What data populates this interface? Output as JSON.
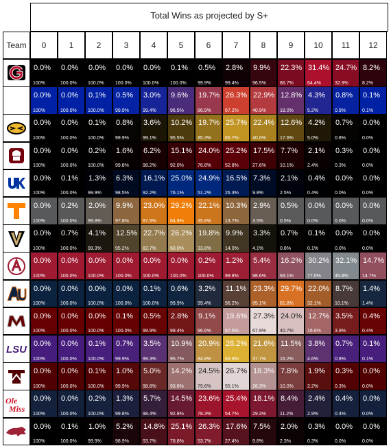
{
  "chart_data": {
    "type": "heatmap",
    "title": "Total Wins as projected by S+",
    "row_header": "Team",
    "columns": [
      "0",
      "1",
      "2",
      "3",
      "4",
      "5",
      "6",
      "7",
      "8",
      "9",
      "10",
      "11",
      "12"
    ],
    "rows": [
      {
        "logo": "georgia-g-logo",
        "bg": "#000000",
        "fill": "#b0102e",
        "text": "#ffffff",
        "values": [
          "0.0%",
          "0.0%",
          "0.0%",
          "0.0%",
          "0.0%",
          "0.1%",
          "0.5%",
          "2.8%",
          "9.9%",
          "22.3%",
          "31.4%",
          "24.7%",
          "8.2%"
        ],
        "cumulative": [
          "100%",
          "100.0%",
          "100.0%",
          "100.0%",
          "100.0%",
          "100.0%",
          "99.9%",
          "99.4%",
          "96.5%",
          "86.7%",
          "64.4%",
          "32.9%",
          "8.2%"
        ]
      },
      {
        "logo": "florida-gator-logo",
        "bg": "#0021a5",
        "fill": "#fa4616",
        "text": "#ffffff",
        "values": [
          "0.0%",
          "0.0%",
          "0.1%",
          "0.5%",
          "3.0%",
          "9.6%",
          "19.7%",
          "26.3%",
          "22.9%",
          "12.8%",
          "4.3%",
          "0.8%",
          "0.1%"
        ],
        "cumulative": [
          "100%",
          "100.0%",
          "100.0%",
          "99.9%",
          "99.4%",
          "96.5%",
          "86.9%",
          "67.2%",
          "40.9%",
          "18.0%",
          "5.2%",
          "0.9%",
          "0.1%"
        ]
      },
      {
        "logo": "missouri-tiger-logo",
        "bg": "#000000",
        "fill": "#f1b82d",
        "text": "#ffffff",
        "values": [
          "0.0%",
          "0.0%",
          "0.1%",
          "0.8%",
          "3.6%",
          "10.2%",
          "19.7%",
          "25.7%",
          "22.4%",
          "12.6%",
          "4.2%",
          "0.7%",
          "0.0%"
        ],
        "cumulative": [
          "100%",
          "100.0%",
          "100.0%",
          "99.9%",
          "99.1%",
          "95.5%",
          "85.3%",
          "65.7%",
          "40.0%",
          "17.6%",
          "5.0%",
          "0.8%",
          "0.0%"
        ]
      },
      {
        "logo": "south-carolina-gamecock-logo",
        "bg": "#000000",
        "fill": "#73000a",
        "text": "#ffffff",
        "values": [
          "0.0%",
          "0.0%",
          "0.2%",
          "1.6%",
          "6.2%",
          "15.1%",
          "24.0%",
          "25.2%",
          "17.5%",
          "7.7%",
          "2.1%",
          "0.3%",
          "0.0%"
        ],
        "cumulative": [
          "100%",
          "100.0%",
          "100.0%",
          "99.8%",
          "98.2%",
          "92.0%",
          "76.8%",
          "52.8%",
          "27.6%",
          "10.1%",
          "2.4%",
          "0.3%",
          "0.0%"
        ]
      },
      {
        "logo": "kentucky-uk-logo",
        "bg": "#000000",
        "fill": "#0033a0",
        "text": "#ffffff",
        "values": [
          "0.0%",
          "0.1%",
          "1.3%",
          "6.3%",
          "16.1%",
          "25.0%",
          "24.9%",
          "16.5%",
          "7.3%",
          "2.1%",
          "0.4%",
          "0.0%",
          "0.0%"
        ],
        "cumulative": [
          "100%",
          "100.0%",
          "99.9%",
          "98.5%",
          "92.2%",
          "76.1%",
          "51.2%",
          "26.3%",
          "9.8%",
          "2.5%",
          "0.4%",
          "0.0%",
          "0.0%"
        ]
      },
      {
        "logo": "tennessee-t-logo",
        "bg": "#58595b",
        "fill": "#ff8200",
        "text": "#ffffff",
        "values": [
          "0.0%",
          "0.2%",
          "2.0%",
          "9.9%",
          "23.0%",
          "29.2%",
          "22.1%",
          "10.3%",
          "2.9%",
          "0.5%",
          "0.0%",
          "0.0%",
          "0.0%"
        ],
        "cumulative": [
          "100%",
          "100.0%",
          "99.8%",
          "97.8%",
          "87.9%",
          "64.9%",
          "35.8%",
          "13.7%",
          "3.5%",
          "0.5%",
          "0.0%",
          "0.0%",
          "0.0%"
        ]
      },
      {
        "logo": "vanderbilt-v-logo",
        "bg": "#000000",
        "fill": "#cfae70",
        "text": "#ffffff",
        "values": [
          "0.0%",
          "0.7%",
          "4.1%",
          "12.5%",
          "22.7%",
          "26.2%",
          "19.8%",
          "9.9%",
          "3.3%",
          "0.7%",
          "0.1%",
          "0.0%",
          "0.0%"
        ],
        "cumulative": [
          "100%",
          "100.0%",
          "99.3%",
          "95.2%",
          "82.7%",
          "60.0%",
          "33.8%",
          "14.0%",
          "4.1%",
          "0.8%",
          "0.1%",
          "0.0%",
          "0.0%"
        ]
      },
      {
        "logo": "alabama-a-logo",
        "bg": "#9e1b32",
        "fill": "#828a8f",
        "text": "#ffffff",
        "values": [
          "0.0%",
          "0.0%",
          "0.0%",
          "0.0%",
          "0.0%",
          "0.0%",
          "0.2%",
          "1.2%",
          "5.4%",
          "16.2%",
          "30.2%",
          "32.1%",
          "14.7%"
        ],
        "cumulative": [
          "100%",
          "100.0%",
          "100.0%",
          "100.0%",
          "100.0%",
          "100.0%",
          "100.0%",
          "99.8%",
          "98.6%",
          "93.1%",
          "77.0%",
          "46.8%",
          "14.7%"
        ]
      },
      {
        "logo": "auburn-au-logo",
        "bg": "#0c2340",
        "fill": "#e87722",
        "text": "#ffffff",
        "values": [
          "0.0%",
          "0.0%",
          "0.0%",
          "0.0%",
          "0.1%",
          "0.6%",
          "3.2%",
          "11.1%",
          "23.3%",
          "29.7%",
          "22.0%",
          "8.7%",
          "1.4%"
        ],
        "cumulative": [
          "100%",
          "100.0%",
          "100.0%",
          "100.0%",
          "100.0%",
          "99.9%",
          "99.4%",
          "96.2%",
          "85.1%",
          "61.8%",
          "32.1%",
          "10.1%",
          "1.4%"
        ]
      },
      {
        "logo": "mississippi-state-m-logo",
        "bg": "#660000",
        "fill": "#ffffff",
        "text": "#ffffff",
        "values": [
          "0.0%",
          "0.0%",
          "0.0%",
          "0.1%",
          "0.5%",
          "2.8%",
          "9.1%",
          "19.6%",
          "27.3%",
          "24.0%",
          "12.7%",
          "3.5%",
          "0.4%"
        ],
        "cumulative": [
          "100%",
          "100.0%",
          "100.0%",
          "100.0%",
          "99.9%",
          "99.4%",
          "96.6%",
          "87.5%",
          "67.9%",
          "40.7%",
          "16.6%",
          "3.9%",
          "0.4%"
        ]
      },
      {
        "logo": "lsu-logo",
        "bg": "#461d7c",
        "fill": "#fdd023",
        "text": "#ffffff",
        "values": [
          "0.0%",
          "0.0%",
          "0.1%",
          "0.7%",
          "3.5%",
          "10.9%",
          "20.9%",
          "26.2%",
          "21.6%",
          "11.5%",
          "3.8%",
          "0.7%",
          "0.1%"
        ],
        "cumulative": [
          "100%",
          "100.0%",
          "100.0%",
          "99.9%",
          "99.3%",
          "95.7%",
          "84.8%",
          "63.9%",
          "37.7%",
          "16.2%",
          "4.6%",
          "0.8%",
          "0.1%"
        ]
      },
      {
        "logo": "texas-am-atm-logo",
        "bg": "#500000",
        "fill": "#ffffff",
        "text": "#ffffff",
        "values": [
          "0.0%",
          "0.0%",
          "0.1%",
          "1.0%",
          "5.0%",
          "14.2%",
          "24.5%",
          "26.7%",
          "18.3%",
          "7.8%",
          "1.9%",
          "0.3%",
          "0.0%"
        ],
        "cumulative": [
          "100%",
          "100.0%",
          "100.0%",
          "99.9%",
          "98.8%",
          "93.8%",
          "79.6%",
          "55.1%",
          "28.3%",
          "10.0%",
          "2.2%",
          "0.3%",
          "0.0%"
        ]
      },
      {
        "logo": "ole-miss-script-logo",
        "bg": "#14213d",
        "fill": "#ce1126",
        "text": "#ffffff",
        "values": [
          "0.0%",
          "0.0%",
          "0.2%",
          "1.3%",
          "5.7%",
          "14.5%",
          "23.6%",
          "25.4%",
          "18.1%",
          "8.4%",
          "2.4%",
          "0.4%",
          "0.0%"
        ],
        "cumulative": [
          "100%",
          "100.0%",
          "100.0%",
          "99.8%",
          "98.4%",
          "92.8%",
          "78.3%",
          "54.7%",
          "29.3%",
          "11.2%",
          "2.9%",
          "0.4%",
          "0.0%"
        ]
      },
      {
        "logo": "arkansas-razorback-logo",
        "bg": "#000000",
        "fill": "#9d2235",
        "text": "#ffffff",
        "values": [
          "0.0%",
          "0.1%",
          "1.0%",
          "5.2%",
          "14.8%",
          "25.1%",
          "26.3%",
          "17.6%",
          "7.5%",
          "2.0%",
          "0.3%",
          "0.0%",
          "0.0%"
        ],
        "cumulative": [
          "100%",
          "100.0%",
          "99.9%",
          "98.9%",
          "93.7%",
          "78.8%",
          "53.7%",
          "27.4%",
          "9.8%",
          "2.3%",
          "0.3%",
          "0.0%",
          "0.0%"
        ]
      }
    ]
  }
}
